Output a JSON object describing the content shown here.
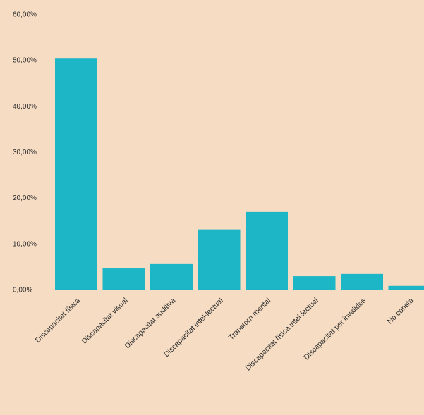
{
  "colors": {
    "background": "#f5dcc3",
    "bar": "#1db6c6",
    "text": "#2b2b2b"
  },
  "chart_data": {
    "type": "bar",
    "title": "",
    "xlabel": "",
    "ylabel": "",
    "ylim": [
      0,
      60
    ],
    "y_ticks": [
      0,
      10,
      20,
      30,
      40,
      50,
      60
    ],
    "y_tick_labels": [
      "0,00%",
      "10,00%",
      "20,00%",
      "30,00%",
      "40,00%",
      "50,00%",
      "60,00%"
    ],
    "grid": false,
    "legend": "none",
    "categories": [
      "Discapacitat física",
      "Discapacitat visual",
      "Discapacitat auditiva",
      "Discapacitat intel·lectual",
      "Transtorn mental",
      "Discapacitat física intel·lectual",
      "Discapacitat per invalides",
      "No consta"
    ],
    "values": [
      50.3,
      4.6,
      5.7,
      13.1,
      16.9,
      2.9,
      3.4,
      0.8
    ]
  }
}
